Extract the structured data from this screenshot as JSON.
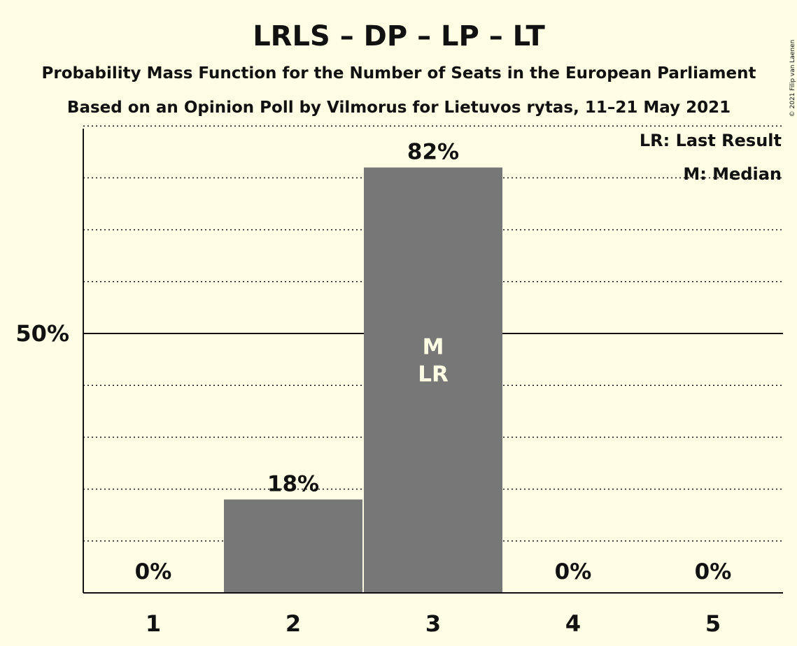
{
  "chart_data": {
    "type": "bar",
    "title": "LRLS – DP – LP – LT",
    "subtitle_1": "Probability Mass Function for the Number of Seats in the European Parliament",
    "subtitle_2": "Based on an Opinion Poll by Vilmorus for Lietuvos rytas, 11–21 May 2021",
    "categories": [
      "1",
      "2",
      "3",
      "4",
      "5"
    ],
    "values": [
      0,
      18,
      82,
      0,
      0
    ],
    "value_labels": [
      "0%",
      "18%",
      "82%",
      "0%",
      "0%"
    ],
    "ylim": [
      0,
      100
    ],
    "y_ticks": [
      {
        "value": 50,
        "label": "50%"
      }
    ],
    "grid": true,
    "grid_step": 10,
    "median_category": "3",
    "last_result_category": "3",
    "median_marker": "M",
    "last_result_marker": "LR",
    "legend": {
      "position": "top-right",
      "last_result": "LR: Last Result",
      "median": "M: Median"
    },
    "copyright": "© 2021 Filip van Laenen",
    "colors": {
      "background": "#fffde4",
      "bar": "#777777",
      "text": "#111111",
      "marker_text": "#fffde4"
    }
  }
}
